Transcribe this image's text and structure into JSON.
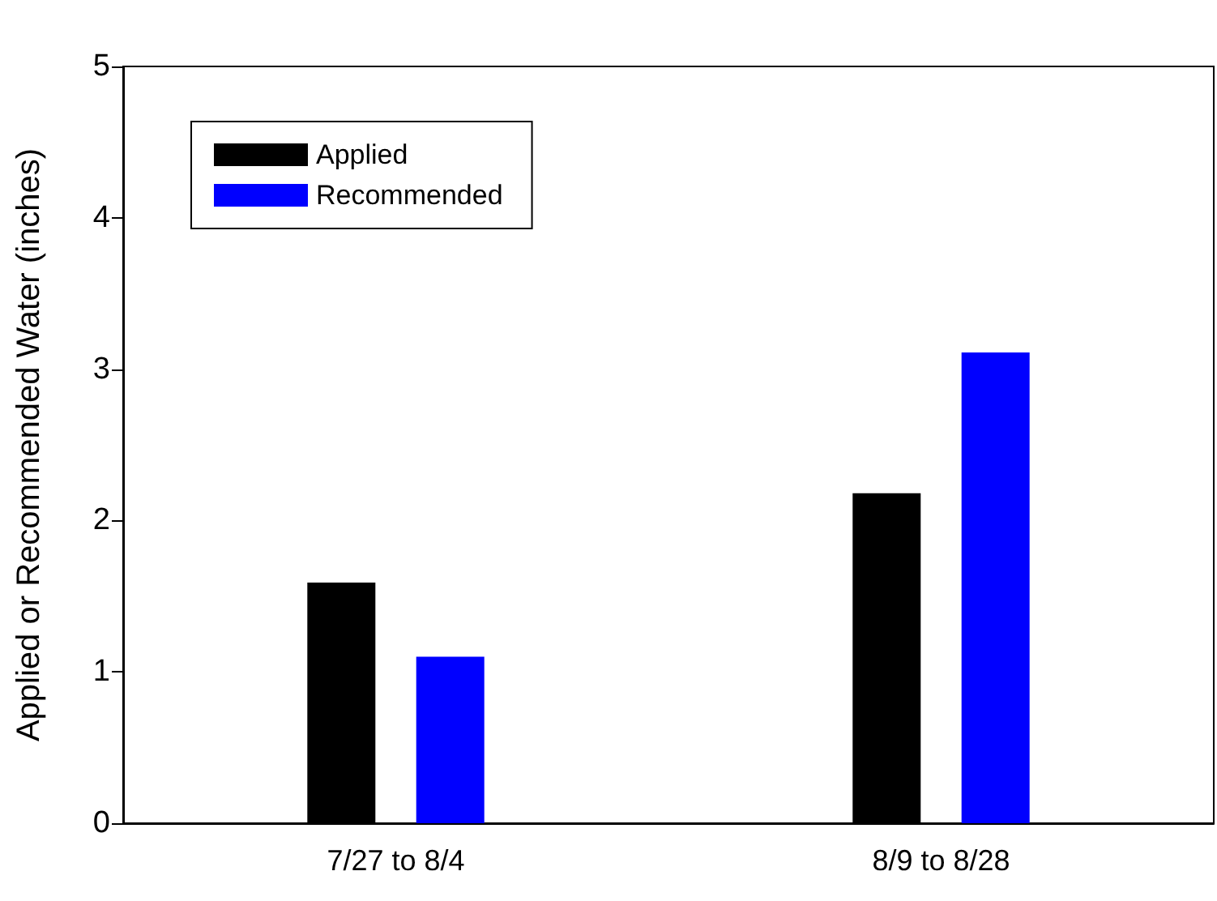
{
  "chart_data": {
    "type": "bar",
    "ylabel": "Applied or Recommended Water (inches)",
    "categories": [
      "7/27 to 8/4",
      "8/9 to 8/28"
    ],
    "series": [
      {
        "name": "Applied",
        "color": "#000000",
        "values": [
          1.59,
          2.18
        ]
      },
      {
        "name": "Recommended",
        "color": "#0000ff",
        "values": [
          1.1,
          3.11
        ]
      }
    ],
    "ylim": [
      0,
      5
    ],
    "yticks": [
      0,
      1,
      2,
      3,
      4,
      5
    ],
    "grid": false,
    "legend": "top left"
  }
}
